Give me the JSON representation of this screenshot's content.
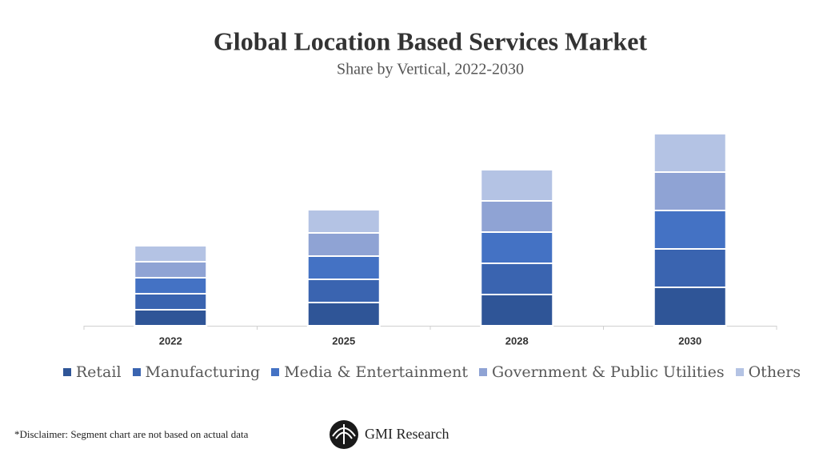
{
  "chart_data": {
    "type": "stacked_bar",
    "title": "Global Location Based Services Market",
    "subtitle": "Share by Vertical, 2022-2030",
    "categories": [
      "2022",
      "2025",
      "2028",
      "2030"
    ],
    "series": [
      {
        "name": "Retail",
        "color": "#2f5597",
        "values": [
          20,
          29,
          39,
          48
        ]
      },
      {
        "name": "Manufacturing",
        "color": "#3a64b0",
        "values": [
          20,
          29,
          39,
          48
        ]
      },
      {
        "name": "Media & Entertainment",
        "color": "#4472c4",
        "values": [
          20,
          29,
          39,
          48
        ]
      },
      {
        "name": "Government & Public Utilities",
        "color": "#8fa3d4",
        "values": [
          20,
          29,
          39,
          48
        ]
      },
      {
        "name": "Others",
        "color": "#b4c3e4",
        "values": [
          20,
          29,
          39,
          48
        ]
      }
    ],
    "legend": "bottom"
  },
  "footer": {
    "disclaimer": "*Disclaimer:  Segment chart are not based on actual data",
    "brand": "GMI Research"
  }
}
